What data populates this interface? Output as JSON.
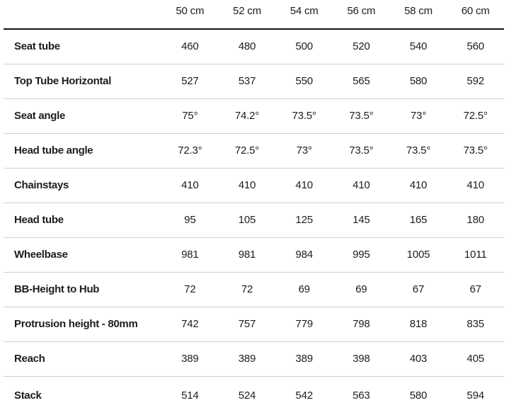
{
  "chart_data": {
    "type": "table",
    "columns": [
      "50 cm",
      "52 cm",
      "54 cm",
      "56 cm",
      "58 cm",
      "60 cm"
    ],
    "rows": [
      {
        "label": "Seat tube",
        "values": [
          "460",
          "480",
          "500",
          "520",
          "540",
          "560"
        ]
      },
      {
        "label": "Top Tube Horizontal",
        "values": [
          "527",
          "537",
          "550",
          "565",
          "580",
          "592"
        ]
      },
      {
        "label": "Seat angle",
        "values": [
          "75°",
          "74.2°",
          "73.5°",
          "73.5°",
          "73°",
          "72.5°"
        ]
      },
      {
        "label": "Head tube angle",
        "values": [
          "72.3°",
          "72.5°",
          "73°",
          "73.5°",
          "73.5°",
          "73.5°"
        ]
      },
      {
        "label": "Chainstays",
        "values": [
          "410",
          "410",
          "410",
          "410",
          "410",
          "410"
        ]
      },
      {
        "label": "Head tube",
        "values": [
          "95",
          "105",
          "125",
          "145",
          "165",
          "180"
        ]
      },
      {
        "label": "Wheelbase",
        "values": [
          "981",
          "981",
          "984",
          "995",
          "1005",
          "1011"
        ]
      },
      {
        "label": "BB-Height to Hub",
        "values": [
          "72",
          "72",
          "69",
          "69",
          "67",
          "67"
        ]
      },
      {
        "label": "Protrusion height - 80mm",
        "values": [
          "742",
          "757",
          "779",
          "798",
          "818",
          "835"
        ]
      },
      {
        "label": "Reach",
        "values": [
          "389",
          "389",
          "389",
          "398",
          "403",
          "405"
        ]
      },
      {
        "label": "Stack",
        "values": [
          "514",
          "524",
          "542",
          "563",
          "580",
          "594"
        ]
      }
    ],
    "layout": {
      "grid": "horizontal-row-rules-only",
      "header_rule": "thick",
      "label_alignment": "left",
      "value_alignment": "center",
      "legend": "none",
      "title": ""
    }
  },
  "colors": {
    "text": "#1d1d1d",
    "header_rule": "#161616",
    "row_rule": "#d0d0d0",
    "background": "#ffffff"
  }
}
